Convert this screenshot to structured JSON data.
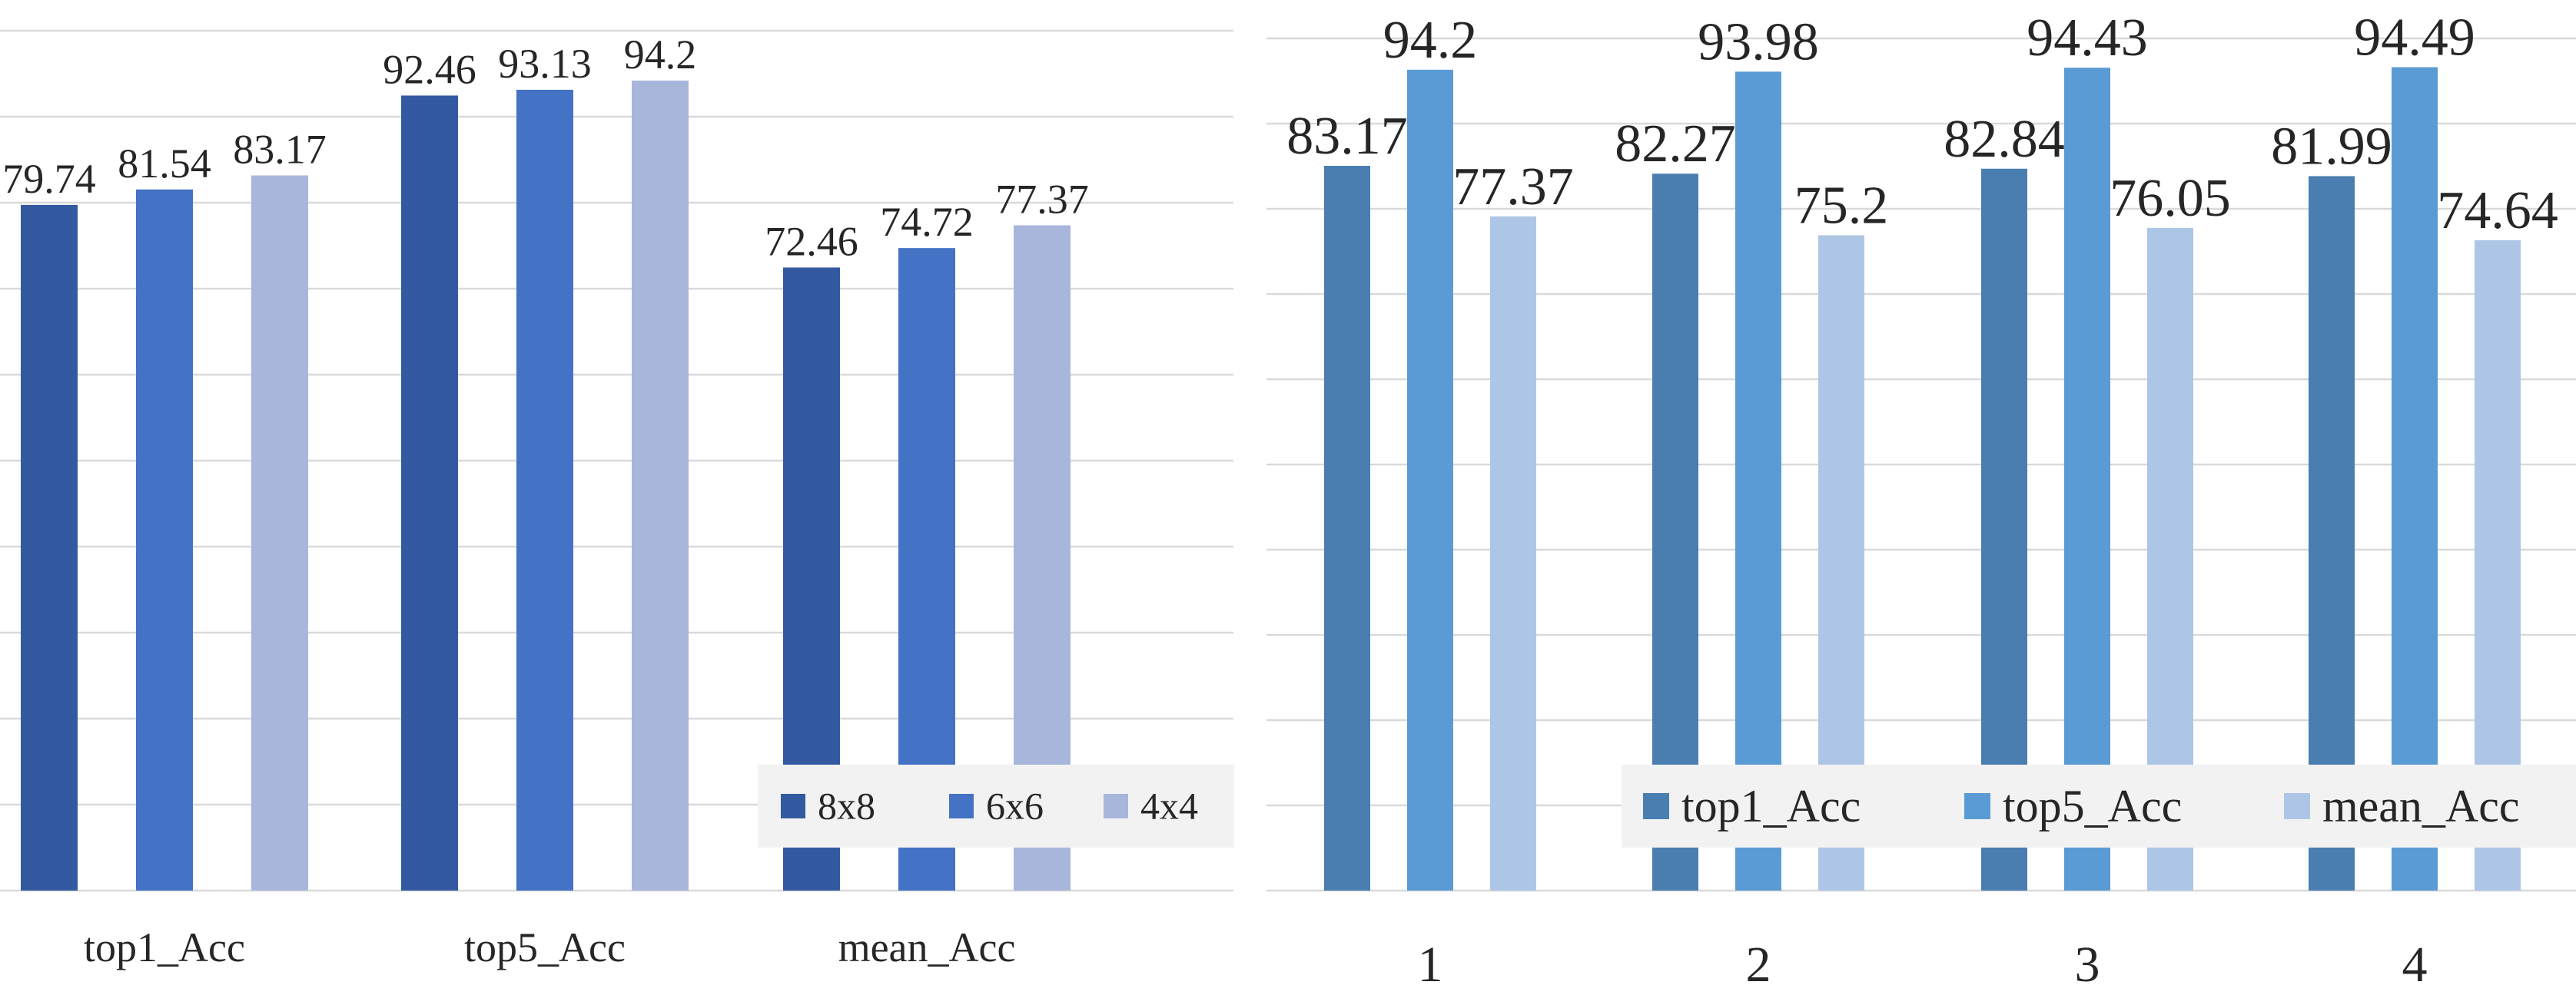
{
  "chart_data": [
    {
      "type": "bar",
      "categories": [
        "top1_Acc",
        "top5_Acc",
        "mean_Acc"
      ],
      "series": [
        {
          "name": "8x8",
          "values": [
            79.74,
            92.46,
            72.46
          ],
          "color": "#335AA1"
        },
        {
          "name": "6x6",
          "values": [
            81.54,
            93.13,
            74.72
          ],
          "color": "#4472C4"
        },
        {
          "name": "4x4",
          "values": [
            83.17,
            94.2,
            77.37
          ],
          "color": "#A9B6DB"
        }
      ],
      "data_labels": true,
      "grid": true,
      "legend": {
        "placement": "bottom-right",
        "box_color": "#f2f2f2"
      }
    },
    {
      "type": "bar",
      "categories": [
        "1",
        "2",
        "3",
        "4"
      ],
      "series": [
        {
          "name": "top1_Acc",
          "values": [
            83.17,
            82.27,
            82.84,
            81.99
          ],
          "color": "#4A7EB1"
        },
        {
          "name": "top5_Acc",
          "values": [
            94.2,
            93.98,
            94.43,
            94.49
          ],
          "color": "#5B9BD5"
        },
        {
          "name": "mean_Acc",
          "values": [
            77.37,
            75.2,
            76.05,
            74.64
          ],
          "color": "#ADC6E5"
        }
      ],
      "data_labels": true,
      "grid": true,
      "legend": {
        "placement": "bottom-right",
        "box_color": "#f2f2f2"
      }
    }
  ]
}
